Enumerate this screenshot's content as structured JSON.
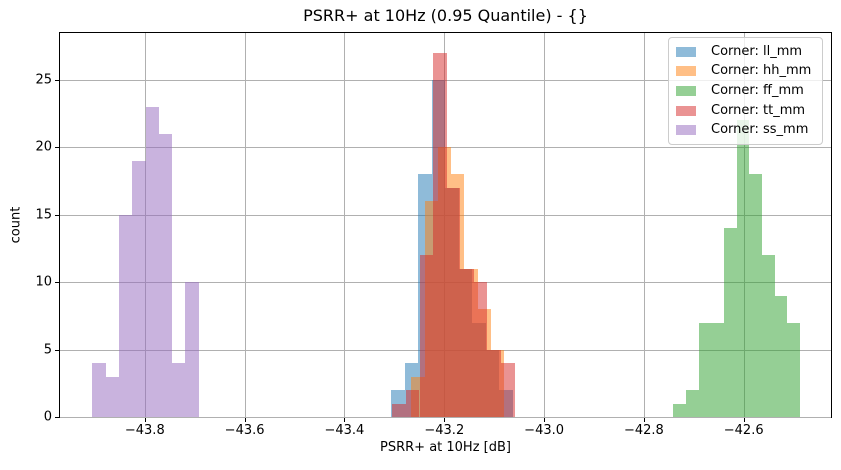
{
  "chart_data": {
    "type": "histogram",
    "title": "PSRR+ at 10Hz (0.95 Quantile) - {}",
    "xlabel": "PSRR+ at 10Hz [dB]",
    "ylabel": "count",
    "xlim": [
      -43.97,
      -42.425
    ],
    "ylim": [
      0,
      28.45
    ],
    "x_ticks": [
      -43.8,
      -43.6,
      -43.4,
      -43.2,
      -43.0,
      -42.8,
      -42.6
    ],
    "x_tick_labels": [
      "−43.8",
      "−43.6",
      "−43.4",
      "−43.2",
      "−43.0",
      "−42.8",
      "−42.6"
    ],
    "y_ticks": [
      0,
      5,
      10,
      15,
      20,
      25
    ],
    "y_tick_labels": [
      "0",
      "5",
      "10",
      "15",
      "20",
      "25"
    ],
    "grid": true,
    "grid_color": "#b0b0b0",
    "bar_alpha": 0.5,
    "legend_position": "upper right",
    "series": [
      {
        "name": "Corner: ll_mm",
        "color": "#1f77b4",
        "bin_start": -43.306,
        "bin_width": 0.027,
        "counts": [
          2,
          4,
          18,
          25,
          17,
          11,
          7,
          5,
          2
        ]
      },
      {
        "name": "Corner: hh_mm",
        "color": "#ff7f0e",
        "bin_start": -43.266,
        "bin_width": 0.0266,
        "counts": [
          3,
          16,
          20,
          18,
          11,
          8,
          5
        ]
      },
      {
        "name": "Corner: ff_mm",
        "color": "#2ca02c",
        "bin_start": -42.741,
        "bin_width": 0.0254,
        "counts": [
          1,
          2,
          7,
          7,
          14,
          22,
          18,
          12,
          9,
          7
        ]
      },
      {
        "name": "Corner: tt_mm",
        "color": "#d62728",
        "bin_start": -43.304,
        "bin_width": 0.0272,
        "counts": [
          1,
          2,
          12,
          27,
          17,
          11,
          10,
          5,
          4
        ]
      },
      {
        "name": "Corner: ss_mm",
        "color": "#9467bd",
        "bin_start": -43.905,
        "bin_width": 0.0266,
        "counts": [
          4,
          3,
          15,
          19,
          23,
          21,
          4,
          10
        ]
      }
    ]
  }
}
